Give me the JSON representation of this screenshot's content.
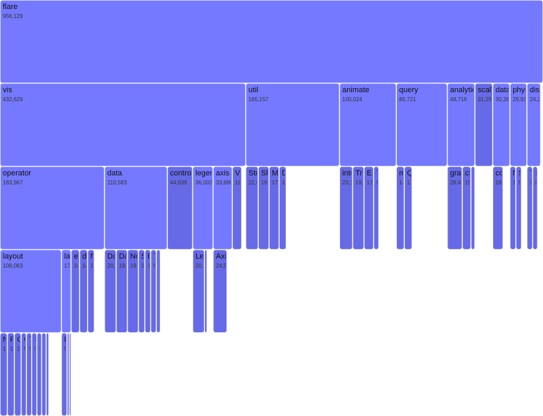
{
  "chart_data": {
    "type": "icicle",
    "color": "#7479ff",
    "leaf_color": "#676ae6",
    "root": {
      "name": "flare",
      "value": 956129,
      "label": "956,129",
      "children": [
        {
          "name": "vis",
          "value": 432629,
          "label": "432,629",
          "children": [
            {
              "name": "operator",
              "value": 183967,
              "label": "183,967",
              "children": [
                {
                  "name": "layout",
                  "value": 108083,
                  "label": "108,083",
                  "children": [
                    {
                      "name": "NodeLinkTreeLayout",
                      "value": 12870,
                      "label": "12,870"
                    },
                    {
                      "name": "RadialTreeLayout",
                      "value": 12348,
                      "label": "12,348"
                    },
                    {
                      "name": "CirclePackingLayout",
                      "value": 12003,
                      "label": "12,003"
                    },
                    {
                      "name": "CircleLayout",
                      "value": 9317,
                      "label": "9,317"
                    },
                    {
                      "name": "TreeMapLayout",
                      "value": 9191,
                      "label": "9,191"
                    },
                    {
                      "name": "StackedAreaLayout",
                      "value": 9121,
                      "label": "9,121"
                    },
                    {
                      "name": "ForceDirectedLayout",
                      "value": 8411,
                      "label": "8,411"
                    },
                    {
                      "name": "Layout",
                      "value": 7881,
                      "label": "7,881"
                    },
                    {
                      "name": "IcicleTreeLayout",
                      "value": 4864,
                      "label": "4,864"
                    }
                  ]
                },
                {
                  "name": "label",
                  "value": 17057,
                  "label": "17,057",
                  "children": [
                    {
                      "name": "Labeler",
                      "value": 9956,
                      "label": "9,956"
                    },
                    {
                      "name": "RadialLabeler",
                      "value": 3899,
                      "label": "3,899"
                    },
                    {
                      "name": "StackedAreaLabeler",
                      "value": 3202,
                      "label": "3,202"
                    }
                  ]
                },
                {
                  "name": "encoder",
                  "value": 14897,
                  "label": "14,897"
                },
                {
                  "name": "distortion",
                  "value": 14219,
                  "label": "14,219"
                },
                {
                  "name": "filter",
                  "value": 11893,
                  "label": "11,893"
                }
              ]
            },
            {
              "name": "data",
              "value": 110583,
              "label": "110,583",
              "children": [
                {
                  "name": "Data",
                  "value": 20544,
                  "label": "20,544"
                },
                {
                  "name": "DataList",
                  "value": 19788,
                  "label": "19,788"
                },
                {
                  "name": "NodeSprite",
                  "value": 19382,
                  "label": "19,382"
                },
                {
                  "name": "ScaleBinding",
                  "value": 11275,
                  "label": "11,275"
                },
                {
                  "name": "DataSprite",
                  "value": 10349,
                  "label": "10,349"
                },
                {
                  "name": "TreeBuilder",
                  "value": 9930,
                  "label": "9,930"
                },
                {
                  "name": "Tree",
                  "value": 7147,
                  "label": "7,147"
                }
              ]
            },
            {
              "name": "controls",
              "value": 44639,
              "label": "44,639"
            },
            {
              "name": "legend",
              "value": 36003,
              "label": "36,003",
              "children": [
                {
                  "name": "Legend",
                  "value": 20859,
                  "label": "20,859"
                },
                {
                  "name": "LegendItem",
                  "value": 4614,
                  "label": "4,614"
                }
              ]
            },
            {
              "name": "axis",
              "value": 33886,
              "label": "33,886",
              "children": [
                {
                  "name": "Axis",
                  "value": 24593,
                  "label": "24,593"
                }
              ]
            },
            {
              "name": "Visualization",
              "value": 16540,
              "label": "16,540"
            }
          ]
        },
        {
          "name": "util",
          "value": 165157,
          "label": "165,157",
          "children": [
            {
              "name": "Strings",
              "value": 22026,
              "label": "22,026"
            },
            {
              "name": "Shapes",
              "value": 19118,
              "label": "19,118"
            },
            {
              "name": "Maths",
              "value": 17705,
              "label": "17,705"
            },
            {
              "name": "Displays",
              "value": 12555,
              "label": "12,555"
            }
          ]
        },
        {
          "name": "animate",
          "value": 100024,
          "label": "100,024",
          "children": [
            {
              "name": "interpolate",
              "value": 23154,
              "label": "23,154"
            },
            {
              "name": "Transitioner",
              "value": 19975,
              "label": "19,975"
            },
            {
              "name": "Easing",
              "value": 17010,
              "label": "17,010"
            },
            {
              "name": "Transition",
              "value": 9201,
              "label": "9,201"
            }
          ]
        },
        {
          "name": "query",
          "value": 89721,
          "label": "89,721",
          "children": [
            {
              "name": "methods",
              "value": 14000,
              "label": "14,000"
            },
            {
              "name": "Query",
              "value": 13896,
              "label": "13,896"
            }
          ]
        },
        {
          "name": "analytics",
          "value": 48716,
          "label": "48,716",
          "children": [
            {
              "name": "graph",
              "value": 26435,
              "label": "26,435"
            },
            {
              "name": "cluster",
              "value": 15207,
              "label": "15,207"
            },
            {
              "name": "optimization",
              "value": 7074,
              "label": "7,074"
            }
          ]
        },
        {
          "name": "scale",
          "value": 31294,
          "label": "31,294"
        },
        {
          "name": "data",
          "value": 30284,
          "label": "30,284",
          "children": [
            {
              "name": "converters",
              "value": 18349,
              "label": "18,349"
            }
          ]
        },
        {
          "name": "physics",
          "value": 29934,
          "label": "29,934",
          "children": [
            {
              "name": "NBodyForce",
              "value": 10498,
              "label": "10,498"
            },
            {
              "name": "Simulation",
              "value": 9983,
              "label": "9,983"
            }
          ]
        },
        {
          "name": "display",
          "value": 24254,
          "label": "24,254",
          "children": [
            {
              "name": "TextSprite",
              "value": 10066,
              "label": "10,066"
            },
            {
              "name": "DirtySprite",
              "value": 8833,
              "label": "8,833"
            }
          ]
        }
      ]
    }
  }
}
